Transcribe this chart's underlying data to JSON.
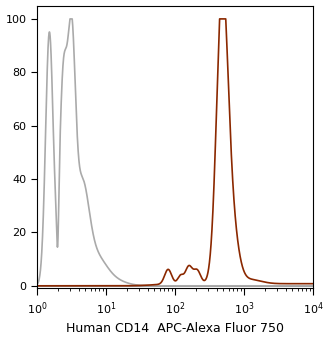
{
  "title": "",
  "xlabel": "Human CD14  APC-Alexa Fluor 750",
  "ylabel": "",
  "xlim": [
    1.0,
    10000.0
  ],
  "ylim": [
    -1,
    105
  ],
  "gray_color": "#aaaaaa",
  "red_color": "#8B2800",
  "linewidth": 1.2,
  "yticks": [
    0,
    20,
    40,
    60,
    80,
    100
  ],
  "background_color": "#ffffff",
  "fig_width": 3.29,
  "fig_height": 3.41,
  "dpi": 100
}
